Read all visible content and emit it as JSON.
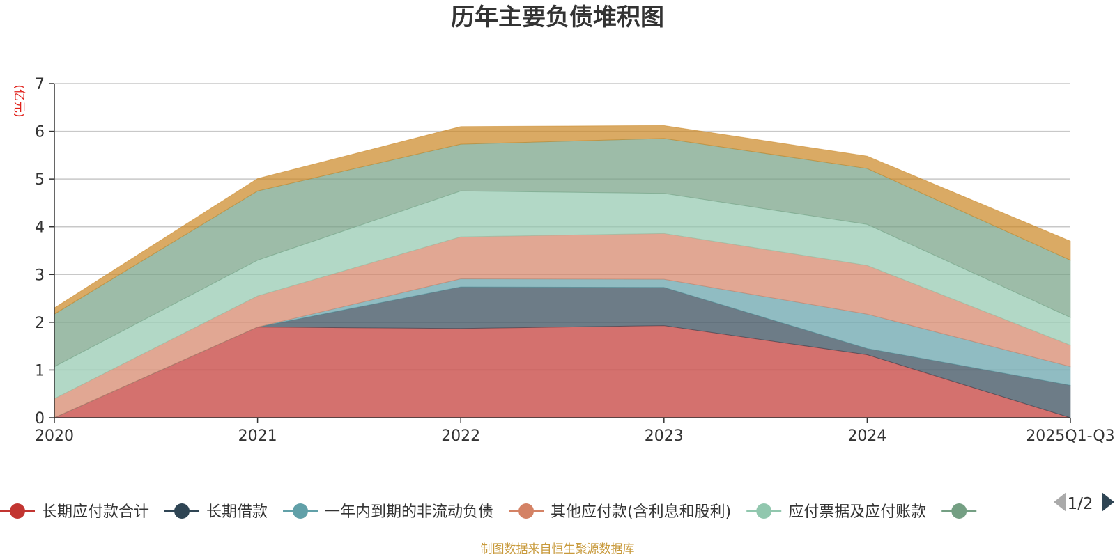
{
  "title": "历年主要负债堆积图",
  "unit_label": "(亿元)",
  "source": "制图数据来自恒生聚源数据库",
  "pager": {
    "text": "1/2",
    "prev_color": "#aaaaaa",
    "next_color": "#2f4554"
  },
  "chart_data": {
    "type": "area",
    "stacked": true,
    "categories": [
      "2020",
      "2021",
      "2022",
      "2023",
      "2024",
      "2025Q1-Q3"
    ],
    "ylim": [
      0,
      7
    ],
    "yticks": [
      0,
      1,
      2,
      3,
      4,
      5,
      6,
      7
    ],
    "grid": true,
    "legend_position": "bottom",
    "series": [
      {
        "name": "长期应付款合计",
        "color": "#c23531",
        "values": [
          0.0,
          1.9,
          1.87,
          1.93,
          1.32,
          0.0
        ]
      },
      {
        "name": "长期借款",
        "color": "#2f4554",
        "values": [
          0.0,
          0.0,
          0.87,
          0.8,
          0.13,
          0.68
        ]
      },
      {
        "name": "一年内到期的非流动负债",
        "color": "#61a0a8",
        "values": [
          0.0,
          0.0,
          0.17,
          0.17,
          0.72,
          0.39
        ]
      },
      {
        "name": "其他应付款(含利息和股利)",
        "color": "#d48265",
        "values": [
          0.4,
          0.65,
          0.88,
          0.96,
          1.02,
          0.45
        ]
      },
      {
        "name": "应付票据及应付账款",
        "color": "#91c7ae",
        "values": [
          0.67,
          0.75,
          0.96,
          0.84,
          0.86,
          0.58
        ]
      },
      {
        "name": "",
        "color": "#749f83",
        "values": [
          1.1,
          1.45,
          0.98,
          1.15,
          1.17,
          1.2
        ]
      },
      {
        "name": "",
        "color": "#ca8622",
        "values": [
          0.13,
          0.26,
          0.37,
          0.27,
          0.26,
          0.4
        ]
      }
    ]
  }
}
